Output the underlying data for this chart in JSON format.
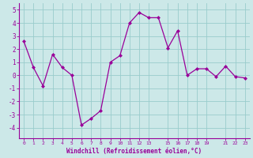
{
  "x": [
    0,
    1,
    2,
    3,
    4,
    5,
    6,
    7,
    8,
    9,
    10,
    11,
    12,
    13,
    14,
    15,
    16,
    17,
    18,
    19,
    20,
    21,
    22,
    23
  ],
  "y": [
    2.6,
    0.6,
    -0.8,
    1.6,
    0.6,
    0.0,
    -3.8,
    -3.3,
    -2.7,
    1.0,
    1.5,
    4.0,
    4.8,
    4.4,
    4.4,
    2.1,
    3.4,
    0.0,
    0.5,
    0.5,
    -0.1,
    0.7,
    -0.1,
    -0.2
  ],
  "line_color": "#990099",
  "marker": "D",
  "marker_size": 2,
  "bg_color": "#cce8e8",
  "grid_color": "#99cccc",
  "xlabel": "Windchill (Refroidissement éolien,°C)",
  "xlabel_color": "#990099",
  "tick_color": "#990099",
  "ylim": [
    -4.8,
    5.5
  ],
  "xlim": [
    -0.5,
    23.5
  ],
  "yticks": [
    -4,
    -3,
    -2,
    -1,
    0,
    1,
    2,
    3,
    4,
    5
  ],
  "xticks": [
    0,
    1,
    2,
    3,
    4,
    5,
    6,
    7,
    8,
    9,
    10,
    11,
    12,
    13,
    15,
    16,
    17,
    18,
    19,
    21,
    22,
    23
  ],
  "xtick_labels": [
    "0",
    "1",
    "2",
    "3",
    "4",
    "5",
    "6",
    "7",
    "8",
    "9",
    "10",
    "11",
    "12",
    "13",
    "15",
    "16",
    "17",
    "18",
    "19",
    "21",
    "22",
    "23"
  ]
}
